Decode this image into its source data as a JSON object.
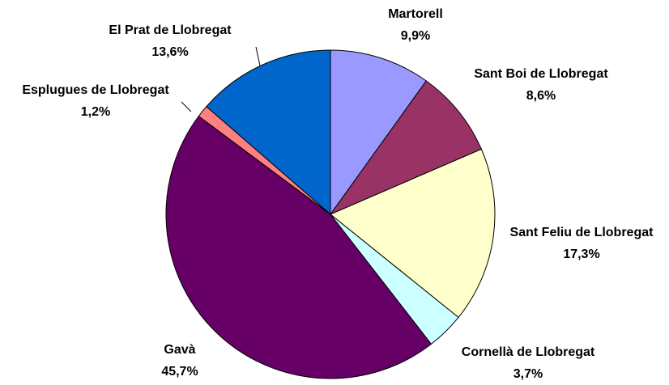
{
  "chart_data": {
    "type": "pie",
    "categories": [
      "Martorell",
      "Sant Boi de Llobregat",
      "Sant Feliu de Llobregat",
      "Cornellà de Llobregat",
      "Gavà",
      "Esplugues de Llobregat",
      "El Prat de Llobregat"
    ],
    "values": [
      9.9,
      8.6,
      17.3,
      3.7,
      45.7,
      1.2,
      13.6
    ],
    "value_labels": [
      "9,9%",
      "8,6%",
      "17,3%",
      "3,7%",
      "45,7%",
      "1,2%",
      "13,6%"
    ],
    "colors": [
      "#9999ff",
      "#993366",
      "#ffffcc",
      "#ccffff",
      "#660066",
      "#ff8080",
      "#0066cc"
    ]
  }
}
